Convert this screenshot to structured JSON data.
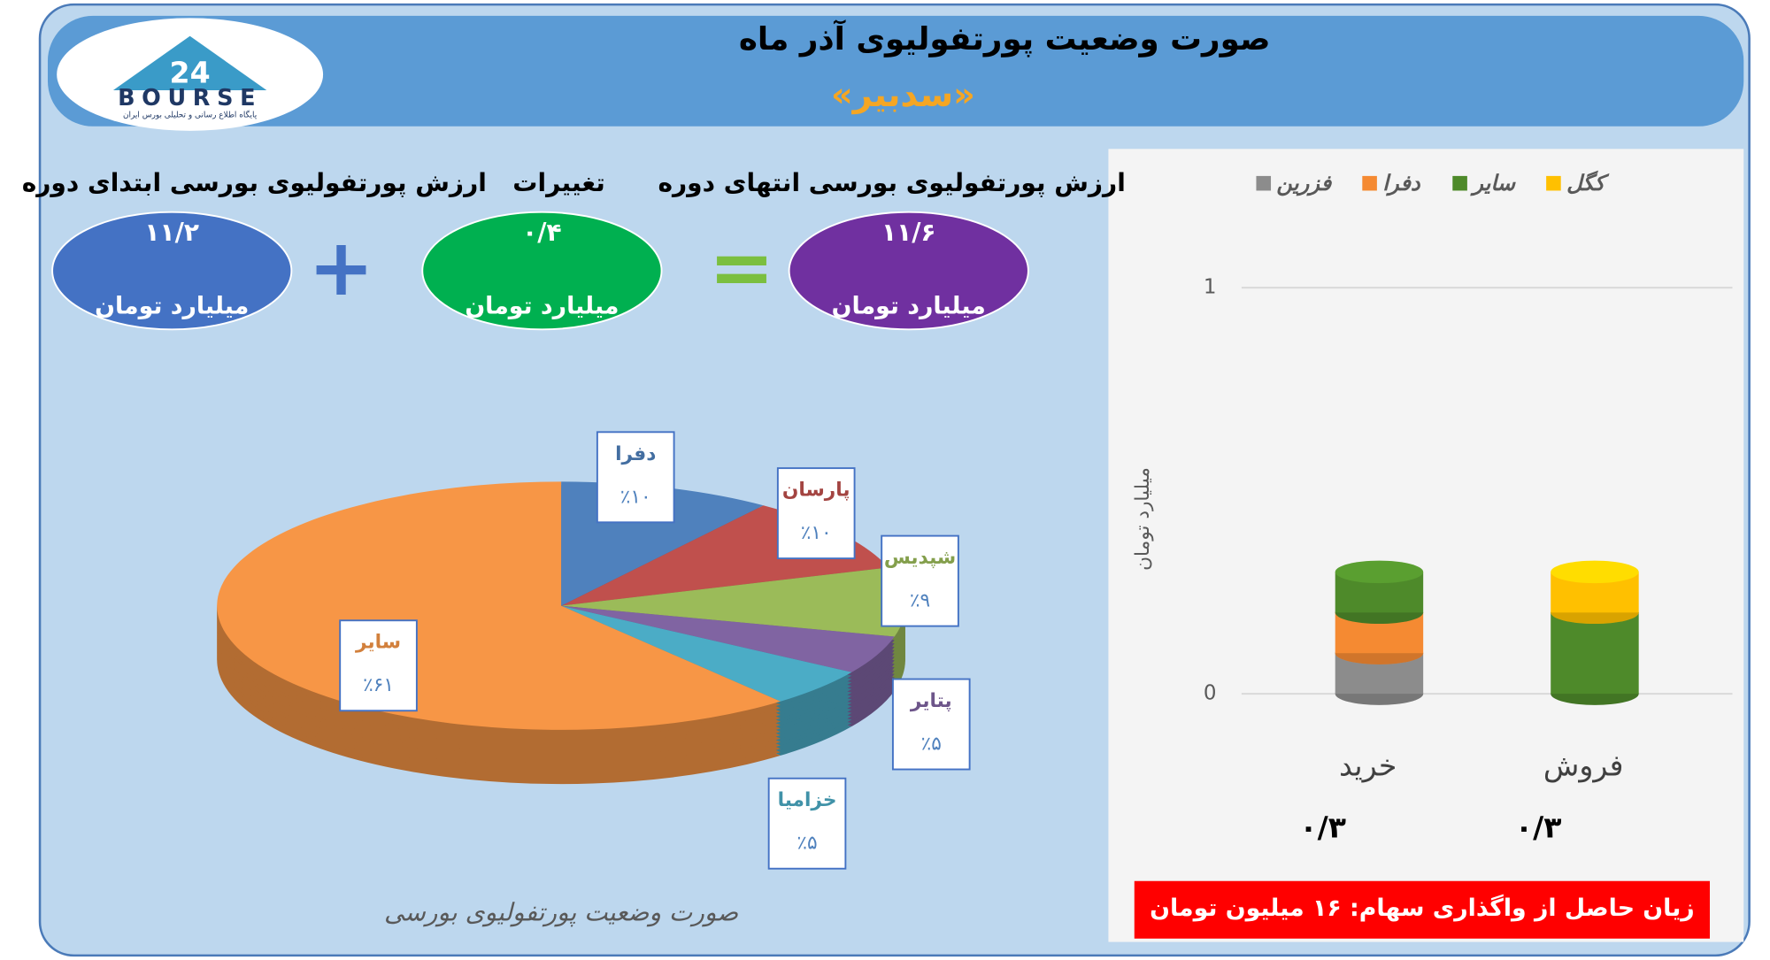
{
  "header": {
    "title": "صورت وضعیت پورتفولیوی آذر ماه",
    "subtitle": "«سدبیر»"
  },
  "logo": {
    "mark": "24",
    "name": "BOURSE",
    "tagline": "پایگاه اطلاع رسانی و تحلیلی بورس ایران"
  },
  "summary": [
    {
      "label": "ارزش پورتفولیوی بورسی انتهای دوره",
      "value": "۱۱/۶",
      "unit": "میلیارد تومان",
      "color": "#7030a0"
    },
    {
      "label": "تغییرات",
      "value": "۰/۴",
      "unit": "میلیارد تومان",
      "color": "#00b050"
    },
    {
      "label": "ارزش پورتفولیوی بورسی ابتدای دوره",
      "value": "۱۱/۲",
      "unit": "میلیارد تومان",
      "color": "#4472c4"
    }
  ],
  "chart_data": [
    {
      "type": "pie",
      "title": "صورت وضعیت پورتفولیوی بورسی",
      "categories": [
        "دفرا",
        "پارسان",
        "شپدیس",
        "پتایر",
        "خزامیا",
        "سایر"
      ],
      "values": [
        10,
        10,
        9,
        5,
        5,
        61
      ],
      "value_labels": [
        "٪۱۰",
        "٪۱۰",
        "٪۹",
        "٪۵",
        "٪۵",
        "٪۶۱"
      ],
      "colors": [
        "#4f81bd",
        "#c0504d",
        "#9bbb59",
        "#8064a2",
        "#4bacc6",
        "#f79646"
      ]
    },
    {
      "type": "bar",
      "stacked": true,
      "y_label": "میلیارد تومان",
      "categories": [
        "خرید",
        "فروش"
      ],
      "series": [
        {
          "name": "فزرین",
          "color": "#8c8c8c",
          "values": [
            0.1,
            null
          ]
        },
        {
          "name": "دفرا",
          "color": "#f58a32",
          "values": [
            0.1,
            null
          ]
        },
        {
          "name": "سایر",
          "color": "#4e8a2a",
          "values": [
            0.1,
            0.2
          ]
        },
        {
          "name": "کگل",
          "color": "#ffc000",
          "values": [
            null,
            0.1
          ]
        }
      ],
      "totals": [
        0.3,
        0.3
      ],
      "total_labels": [
        "۰/۳",
        "۰/۳"
      ],
      "ylim": [
        0,
        1
      ],
      "yticks": [
        0,
        1
      ],
      "grid": true,
      "legend": "top",
      "note": "زیان حاصل از واگذاری سهام: ۱۶ میلیون تومان"
    }
  ]
}
